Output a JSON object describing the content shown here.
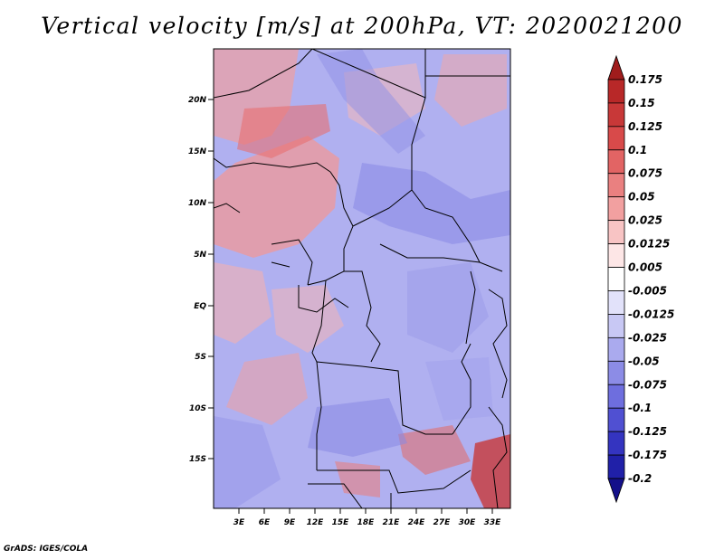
{
  "title": "Vertical velocity [m/s] at 200hPa, VT: 2020021200",
  "credit": "GrADS: IGES/COLA",
  "map": {
    "lat_labels": [
      "20N",
      "15N",
      "10N",
      "5N",
      "EQ",
      "5S",
      "10S",
      "15S"
    ],
    "lon_labels": [
      "3E",
      "6E",
      "9E",
      "12E",
      "15E",
      "18E",
      "21E",
      "24E",
      "27E",
      "30E",
      "33E"
    ]
  },
  "colorbar": {
    "levels": [
      "0.175",
      "0.15",
      "0.125",
      "0.1",
      "0.075",
      "0.05",
      "0.025",
      "0.0125",
      "0.005",
      "-0.005",
      "-0.0125",
      "-0.025",
      "-0.05",
      "-0.075",
      "-0.1",
      "-0.125",
      "-0.175",
      "-0.2"
    ],
    "colors": [
      "#a01c1c",
      "#b82828",
      "#c83838",
      "#d84a4a",
      "#e26464",
      "#ea8080",
      "#f2a0a0",
      "#f8c4c4",
      "#fde6e6",
      "#ffffff",
      "#e2e2fa",
      "#c8c8f4",
      "#aaaaee",
      "#8c8ce6",
      "#6e6ede",
      "#5050d2",
      "#3434c0",
      "#2020a8",
      "#14108a"
    ]
  }
}
